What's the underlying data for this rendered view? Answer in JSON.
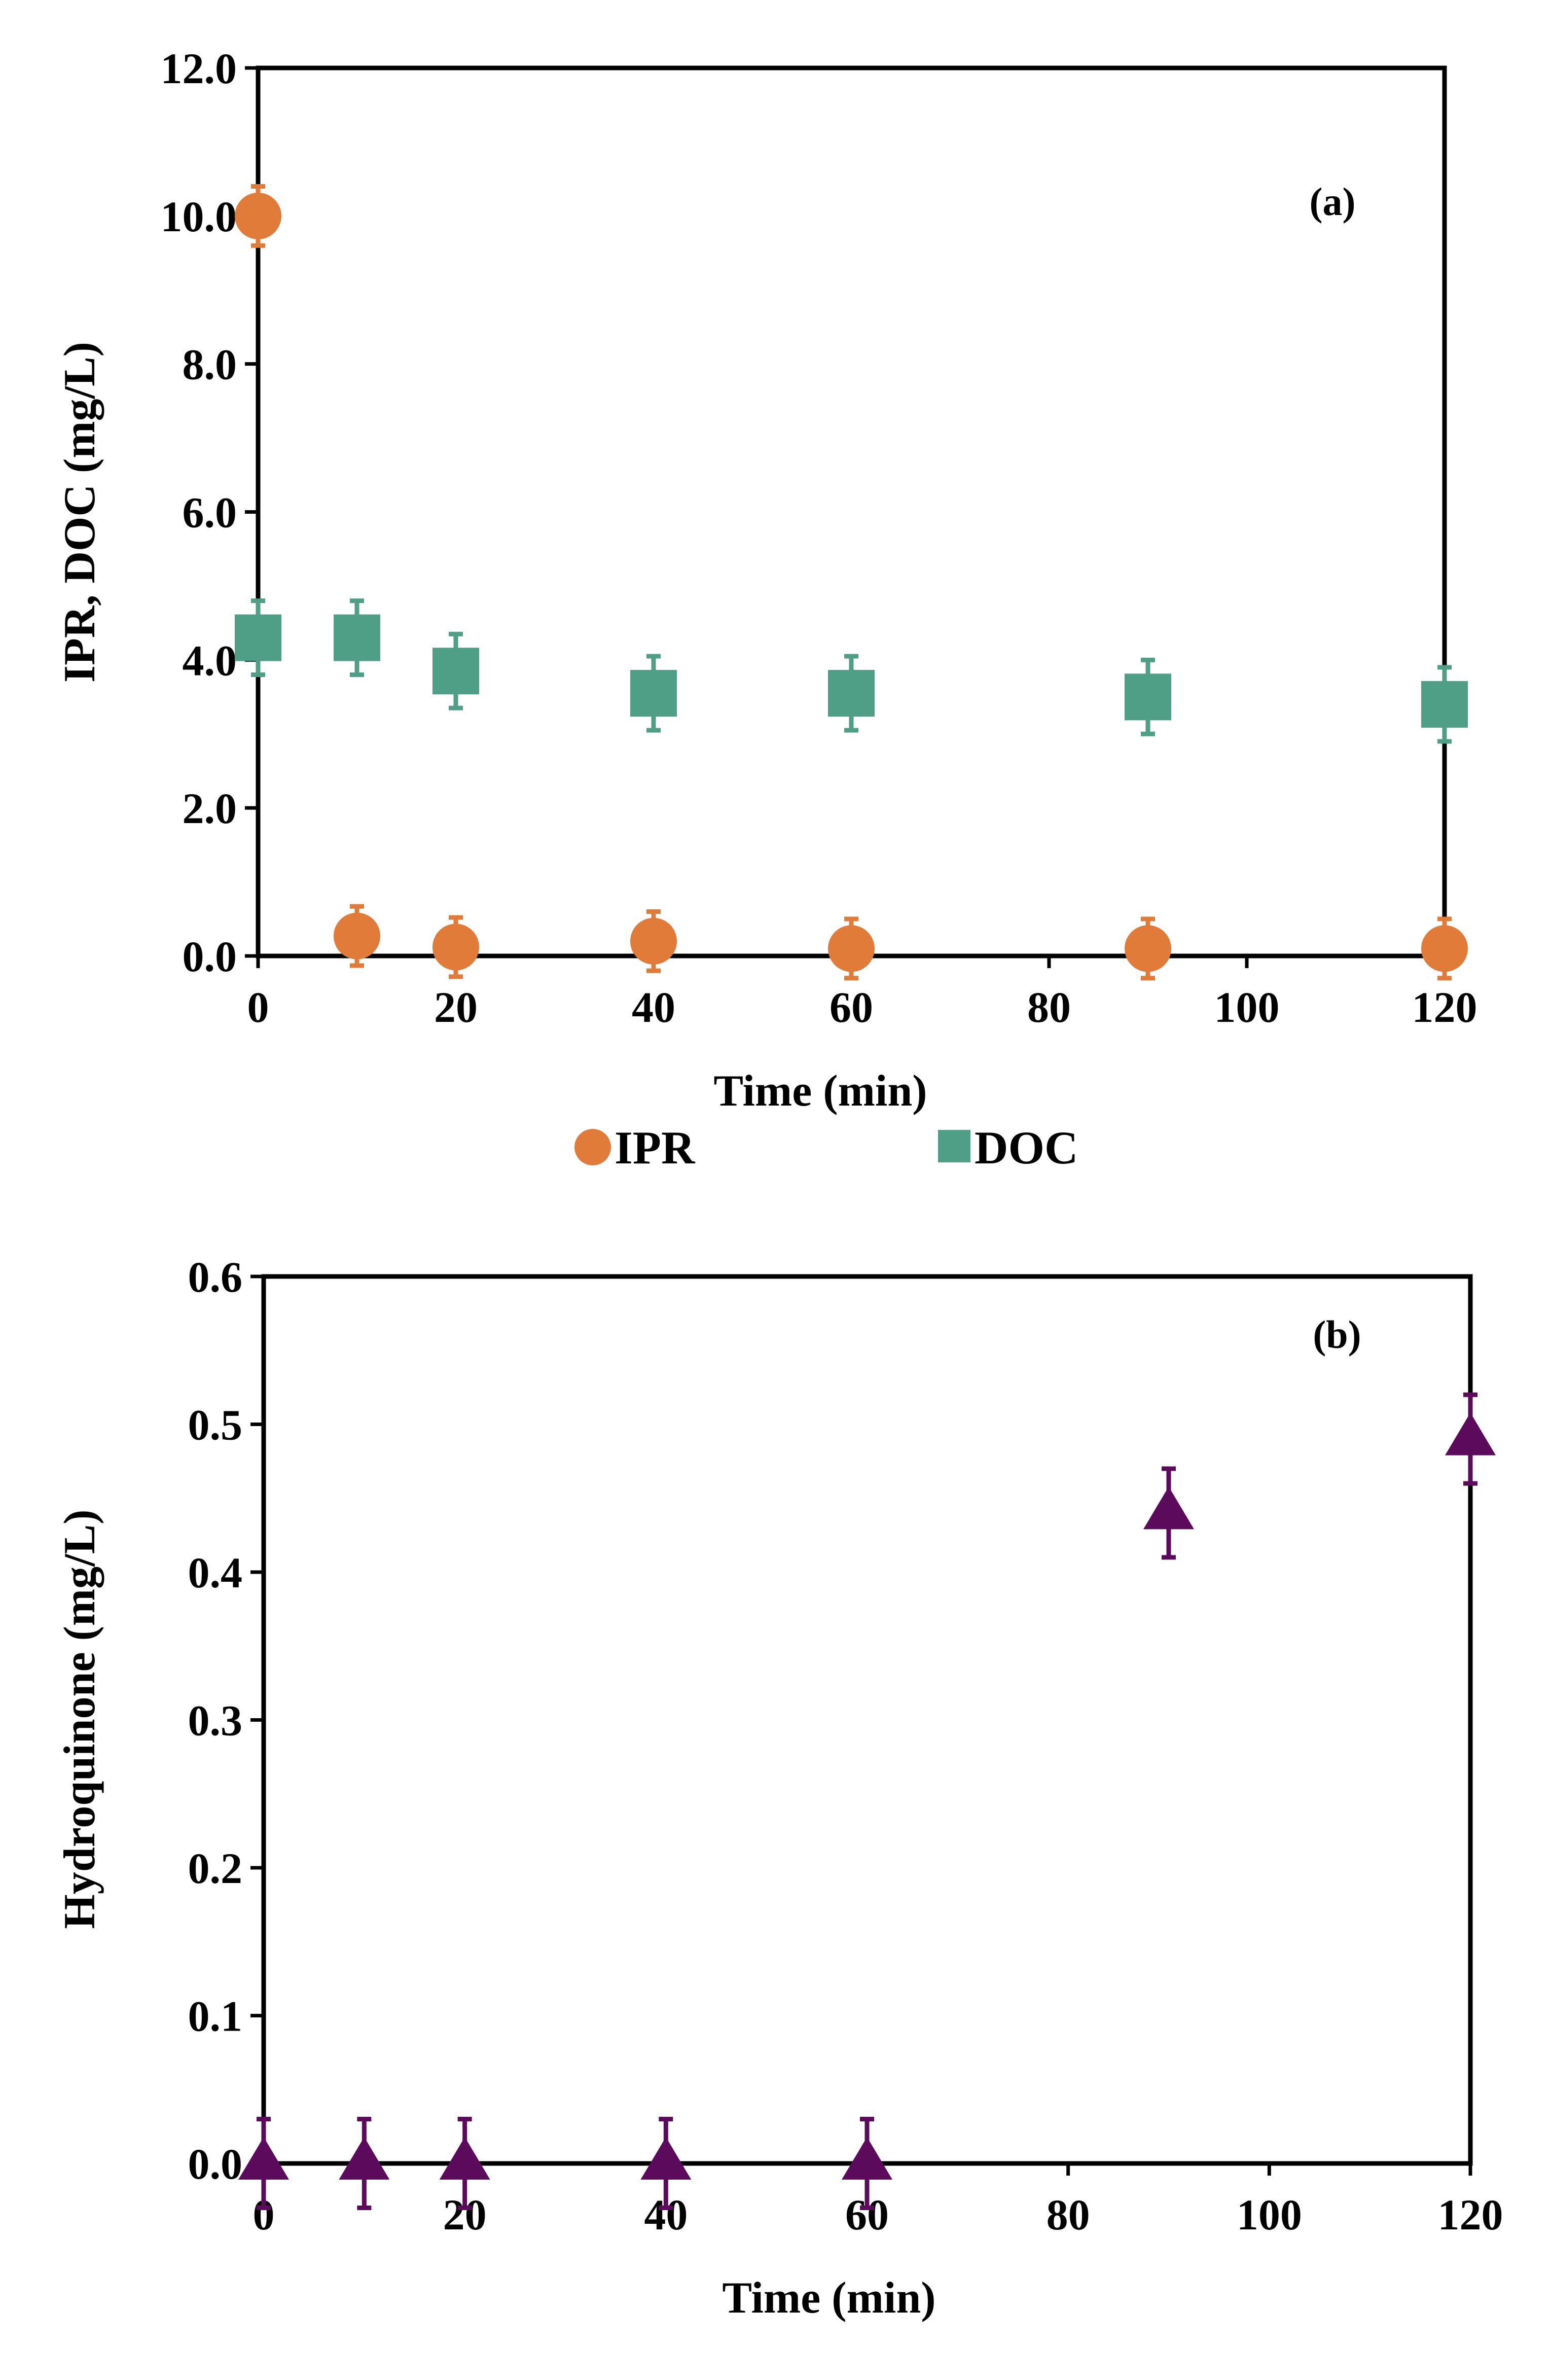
{
  "colors": {
    "ipr": "#E07B39",
    "doc": "#4E9F86",
    "hydroquinone": "#5C0A5C",
    "axis": "#000000"
  },
  "chart_data": [
    {
      "type": "scatter",
      "panel_label": "(a)",
      "xlabel": "Time (min)",
      "ylabel": "IPR, DOC (mg/L)",
      "xlim": [
        0,
        120
      ],
      "ylim": [
        0,
        12
      ],
      "xticks": [
        "0",
        "20",
        "40",
        "60",
        "80",
        "100",
        "120"
      ],
      "yticks": [
        "0.0",
        "2.0",
        "4.0",
        "6.0",
        "8.0",
        "10.0",
        "12.0"
      ],
      "legend_position": "bottom",
      "series": [
        {
          "name": "IPR",
          "marker": "circle",
          "x": [
            0,
            10,
            20,
            40,
            60,
            90,
            120
          ],
          "y": [
            10.0,
            0.27,
            0.12,
            0.2,
            0.1,
            0.1,
            0.1
          ],
          "err": [
            0.4,
            0.4,
            0.4,
            0.4,
            0.4,
            0.4,
            0.4
          ]
        },
        {
          "name": "DOC",
          "marker": "square",
          "x": [
            0,
            10,
            20,
            40,
            60,
            90,
            120
          ],
          "y": [
            4.3,
            4.3,
            3.85,
            3.55,
            3.55,
            3.5,
            3.4
          ],
          "err": [
            0.5,
            0.5,
            0.5,
            0.5,
            0.5,
            0.5,
            0.5
          ]
        }
      ]
    },
    {
      "type": "scatter",
      "panel_label": "(b)",
      "xlabel": "Time (min)",
      "ylabel": "Hydroquinone (mg/L)",
      "xlim": [
        0,
        120
      ],
      "ylim": [
        0,
        0.6
      ],
      "xticks": [
        "0",
        "20",
        "40",
        "60",
        "80",
        "100",
        "120"
      ],
      "yticks": [
        "0.0",
        "0.1",
        "0.2",
        "0.3",
        "0.4",
        "0.5",
        "0.6"
      ],
      "series": [
        {
          "name": "Hydroquinone",
          "marker": "triangle",
          "x": [
            0,
            10,
            20,
            40,
            60,
            90,
            120
          ],
          "y": [
            0.0,
            0.0,
            0.0,
            0.0,
            0.0,
            0.44,
            0.49
          ],
          "err": [
            0.03,
            0.03,
            0.03,
            0.03,
            0.03,
            0.03,
            0.03
          ]
        }
      ]
    }
  ]
}
